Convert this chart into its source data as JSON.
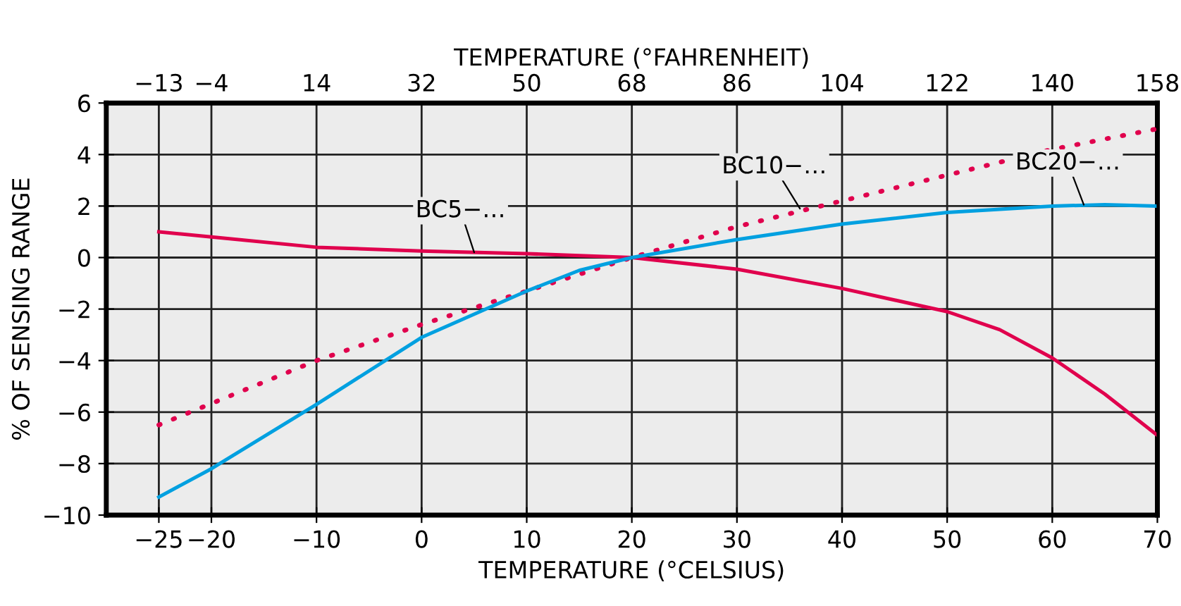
{
  "chart_data": {
    "type": "line",
    "xlabel": "TEMPERATURE (°CELSIUS)",
    "ylabel": "% OF SENSING RANGE",
    "x2label": "TEMPERATURE (°FAHRENHEIT)",
    "xlim": [
      -30,
      70
    ],
    "xticks": [
      -25,
      -20,
      -10,
      0,
      10,
      20,
      30,
      40,
      50,
      60,
      70
    ],
    "x2lim": [
      -22,
      158
    ],
    "x2ticks": [
      -13,
      -4,
      14,
      32,
      50,
      68,
      86,
      104,
      122,
      140,
      158
    ],
    "ylim": [
      -10,
      6
    ],
    "yticks": [
      -10,
      -8,
      -6,
      -4,
      -2,
      0,
      2,
      4,
      6
    ],
    "grid": true,
    "legend": false,
    "series": [
      {
        "color": "#e0004d",
        "line_style": "solid",
        "x": [
          -25,
          -20,
          -10,
          0,
          10,
          20,
          30,
          40,
          50,
          55,
          60,
          65,
          70
        ],
        "values": [
          1.0,
          0.8,
          0.4,
          0.25,
          0.15,
          0,
          -0.45,
          -1.2,
          -2.1,
          -2.8,
          -3.9,
          -5.3,
          -6.9
        ]
      },
      {
        "color": "#e0004d",
        "line_style": "dotted",
        "x": [
          -25,
          -10,
          0,
          10,
          20,
          30,
          40,
          50,
          60,
          70
        ],
        "values": [
          -6.5,
          -4,
          -2.6,
          -1.3,
          0,
          1.2,
          2.2,
          3.2,
          4.2,
          5.0
        ]
      },
      {
        "color": "#00a0e0",
        "line_style": "solid",
        "x": [
          -25,
          -20,
          -10,
          0,
          10,
          15,
          20,
          30,
          40,
          50,
          60,
          65,
          70
        ],
        "values": [
          -9.3,
          -8.2,
          -5.7,
          -3.1,
          -1.3,
          -0.5,
          0,
          0.7,
          1.3,
          1.75,
          2.0,
          2.05,
          2.0
        ]
      }
    ],
    "annotations": [
      {
        "text": "BC5−…",
        "x": 5,
        "y": 0.2
      },
      {
        "text": "BC10−…",
        "x": 36,
        "y": 1.9
      },
      {
        "text": "BC20−…",
        "x": 63,
        "y": 2.05
      }
    ]
  }
}
